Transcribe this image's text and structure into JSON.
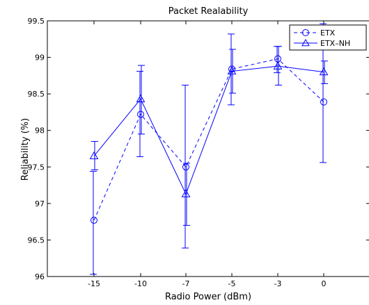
{
  "chart_data": {
    "type": "line",
    "title": "Packet Realability",
    "xlabel": "Radio Power (dBm)",
    "ylabel": "Reliability (%)",
    "categories": [
      "-15",
      "-10",
      "-7",
      "-5",
      "-3",
      "0"
    ],
    "ylim": [
      96,
      99.5
    ],
    "yticks": [
      "96",
      "96.5",
      "97",
      "97.5",
      "98",
      "98.5",
      "99",
      "99.5"
    ],
    "grid": false,
    "legend_position": "top-right",
    "series": [
      {
        "name": "ETX",
        "style": "dashed",
        "marker": "circle",
        "color": "#0000ff",
        "values": [
          96.77,
          98.22,
          97.5,
          98.84,
          98.98,
          98.39
        ],
        "err_low": [
          96.03,
          97.64,
          96.39,
          98.35,
          98.79,
          97.56
        ],
        "err_high": [
          97.44,
          98.81,
          98.62,
          99.32,
          99.15,
          99.46
        ]
      },
      {
        "name": "ETX–NH",
        "style": "solid",
        "marker": "triangle",
        "color": "#0000ff",
        "values": [
          97.65,
          98.43,
          97.13,
          98.81,
          98.88,
          98.8
        ],
        "err_low": [
          97.46,
          97.95,
          96.7,
          98.51,
          98.62,
          98.64
        ],
        "err_high": [
          97.85,
          98.89,
          97.55,
          99.11,
          99.15,
          98.95
        ]
      }
    ]
  }
}
